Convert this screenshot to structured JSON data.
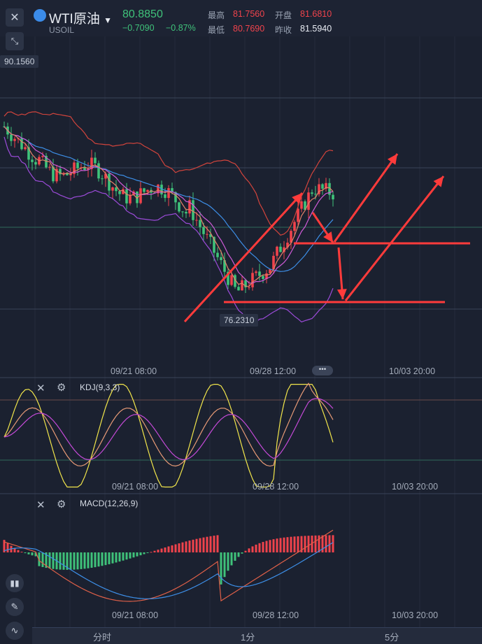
{
  "header": {
    "close_icon": "close-icon",
    "symbol": "WTI原油",
    "code": "USOIL",
    "price": "80.8850",
    "change": "−0.7090",
    "change_pct": "−0.87%",
    "high_label": "最高",
    "high_value": "81.7560",
    "low_label": "最低",
    "low_value": "80.7690",
    "open_label": "开盘",
    "open_value": "81.6810",
    "prev_label": "昨收",
    "prev_value": "81.5940"
  },
  "chart": {
    "top_price_tag": "90.1560",
    "low_price_tag": "76.2310",
    "x_ticks": [
      "09/21 08:00",
      "09/28 12:00",
      "10/03 20:00"
    ]
  },
  "indicators": {
    "kdj_label": "KDJ(9,3,3)",
    "macd_label": "MACD(12,26,9)"
  },
  "footer": {
    "tabs": [
      "分时",
      "1分",
      "5分"
    ]
  },
  "colors": {
    "up": "#f0434c",
    "down": "#3fc27a",
    "bg": "#1b2130"
  },
  "chart_data": {
    "type": "candlestick",
    "overlays": [
      "bollinger bands",
      "moving averages"
    ],
    "annotations": "hand-drawn red arrows and horizontal support lines",
    "price_markers": [
      90.156,
      76.231
    ],
    "indicator_panels": [
      "KDJ",
      "MACD"
    ]
  }
}
